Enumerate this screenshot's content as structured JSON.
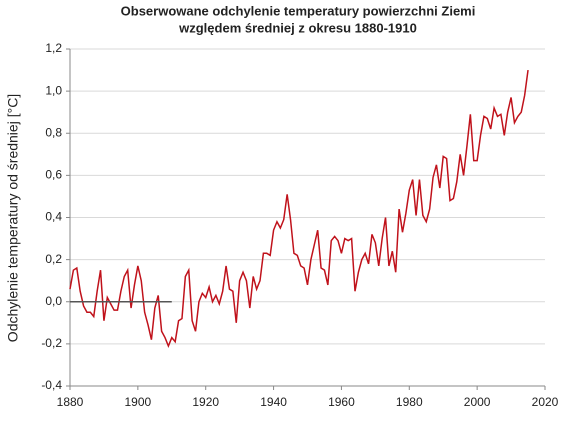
{
  "chart_data": {
    "type": "line",
    "title": [
      "Obserwowane odchylenie temperatury powierzchni Ziemi",
      "względem średniej z okresu 1880-1910"
    ],
    "y_label": "Odchylenie temperatury od średniej [°C]",
    "xlim": [
      1880,
      2020
    ],
    "xticks": [
      1880,
      1900,
      1920,
      1940,
      1960,
      1980,
      2000,
      2020
    ],
    "ylim": [
      -0.4,
      1.2
    ],
    "yticks": [
      {
        "value": -0.4,
        "label": "-0,4"
      },
      {
        "value": -0.2,
        "label": "-0,2"
      },
      {
        "value": 0,
        "label": "0,0"
      },
      {
        "value": 0.2,
        "label": "0,2"
      },
      {
        "value": 0.4,
        "label": "0,4"
      },
      {
        "value": 0.6,
        "label": "0,6"
      },
      {
        "value": 0.8,
        "label": "0,8"
      },
      {
        "value": 1.0,
        "label": "1,0"
      },
      {
        "value": 1.2,
        "label": "1,2"
      }
    ],
    "grid": true,
    "series": [
      {
        "color": "#c0121b",
        "x": [
          1880,
          1881,
          1882,
          1883,
          1884,
          1885,
          1886,
          1887,
          1888,
          1889,
          1890,
          1891,
          1892,
          1893,
          1894,
          1895,
          1896,
          1897,
          1898,
          1899,
          1900,
          1901,
          1902,
          1903,
          1904,
          1905,
          1906,
          1907,
          1908,
          1909,
          1910,
          1911,
          1912,
          1913,
          1914,
          1915,
          1916,
          1917,
          1918,
          1919,
          1920,
          1921,
          1922,
          1923,
          1924,
          1925,
          1926,
          1927,
          1928,
          1929,
          1930,
          1931,
          1932,
          1933,
          1934,
          1935,
          1936,
          1937,
          1938,
          1939,
          1940,
          1941,
          1942,
          1943,
          1944,
          1945,
          1946,
          1947,
          1948,
          1949,
          1950,
          1951,
          1952,
          1953,
          1954,
          1955,
          1956,
          1957,
          1958,
          1959,
          1960,
          1961,
          1962,
          1963,
          1964,
          1965,
          1966,
          1967,
          1968,
          1969,
          1970,
          1971,
          1972,
          1973,
          1974,
          1975,
          1976,
          1977,
          1978,
          1979,
          1980,
          1981,
          1982,
          1983,
          1984,
          1985,
          1986,
          1987,
          1988,
          1989,
          1990,
          1991,
          1992,
          1993,
          1994,
          1995,
          1996,
          1997,
          1998,
          1999,
          2000,
          2001,
          2002,
          2003,
          2004,
          2005,
          2006,
          2007,
          2008,
          2009,
          2010,
          2011,
          2012,
          2013,
          2014,
          2015
        ],
        "values": [
          0.06,
          0.15,
          0.16,
          0.05,
          -0.02,
          -0.05,
          -0.05,
          -0.07,
          0.05,
          0.15,
          -0.09,
          0.02,
          -0.01,
          -0.04,
          -0.04,
          0.05,
          0.12,
          0.15,
          -0.03,
          0.08,
          0.17,
          0.1,
          -0.05,
          -0.11,
          -0.18,
          -0.03,
          0.03,
          -0.14,
          -0.17,
          -0.21,
          -0.17,
          -0.19,
          -0.09,
          -0.08,
          0.12,
          0.15,
          -0.09,
          -0.14,
          0.0,
          0.04,
          0.02,
          0.07,
          0.0,
          0.03,
          -0.01,
          0.05,
          0.17,
          0.06,
          0.05,
          -0.1,
          0.1,
          0.14,
          0.1,
          -0.03,
          0.12,
          0.06,
          0.1,
          0.23,
          0.23,
          0.22,
          0.34,
          0.38,
          0.35,
          0.39,
          0.51,
          0.39,
          0.23,
          0.22,
          0.17,
          0.16,
          0.08,
          0.2,
          0.27,
          0.34,
          0.16,
          0.15,
          0.08,
          0.29,
          0.31,
          0.29,
          0.23,
          0.3,
          0.29,
          0.3,
          0.05,
          0.14,
          0.2,
          0.23,
          0.18,
          0.32,
          0.28,
          0.17,
          0.3,
          0.4,
          0.17,
          0.24,
          0.14,
          0.44,
          0.33,
          0.42,
          0.53,
          0.58,
          0.41,
          0.58,
          0.41,
          0.38,
          0.44,
          0.59,
          0.65,
          0.54,
          0.69,
          0.68,
          0.48,
          0.49,
          0.57,
          0.7,
          0.6,
          0.74,
          0.89,
          0.67,
          0.67,
          0.79,
          0.88,
          0.87,
          0.82,
          0.92,
          0.88,
          0.89,
          0.79,
          0.9,
          0.97,
          0.85,
          0.88,
          0.9,
          0.98,
          1.1
        ]
      },
      {
        "color": "#555555",
        "x": [
          1880,
          1910
        ],
        "values": [
          0,
          0
        ]
      }
    ]
  }
}
